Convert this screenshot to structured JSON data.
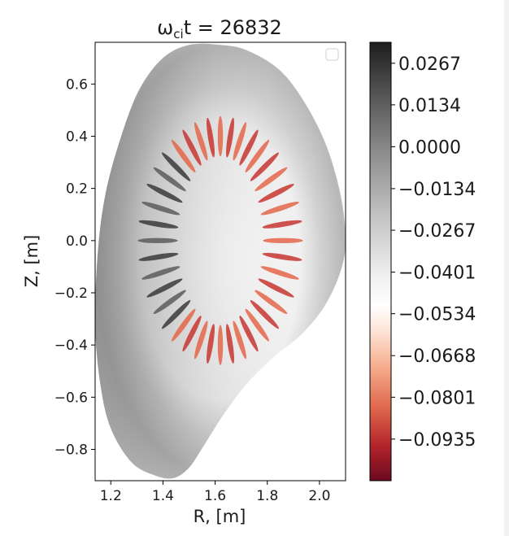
{
  "chart_data": {
    "type": "heatmap",
    "title": "$\\omega_{ci}t = 26832$",
    "title_parts": {
      "symbol": "ω",
      "subscript": "ci",
      "rest": "t = 26832"
    },
    "xlabel": "R, [m]",
    "ylabel": "Z, [m]",
    "xlim": [
      1.14,
      2.1
    ],
    "ylim": [
      -0.92,
      0.76
    ],
    "xticks": [
      "1.2",
      "1.4",
      "1.6",
      "1.8",
      "2.0"
    ],
    "xtick_values": [
      1.2,
      1.4,
      1.6,
      1.8,
      2.0
    ],
    "yticks": [
      "0.6",
      "0.4",
      "0.2",
      "0.0",
      "−0.2",
      "−0.4",
      "−0.6",
      "−0.8"
    ],
    "ytick_values": [
      0.6,
      0.4,
      0.2,
      0.0,
      -0.2,
      -0.4,
      -0.6,
      -0.8
    ],
    "legend": "top-right (empty)",
    "colorbar": {
      "ticks": [
        "0.0267",
        "0.0134",
        "0.0000",
        "−0.0134",
        "−0.0267",
        "−0.0401",
        "−0.0534",
        "−0.0668",
        "−0.0801",
        "−0.0935"
      ],
      "tick_values": [
        0.0267,
        0.0134,
        0.0,
        -0.0134,
        -0.0267,
        -0.0401,
        -0.0534,
        -0.0668,
        -0.0801,
        -0.0935
      ],
      "range": [
        -0.1068,
        0.0334
      ],
      "colormap": [
        "#6b0a1f",
        "#b3242b",
        "#e06a4e",
        "#f7b598",
        "#fdf2ec",
        "#ffffff",
        "#e3e3e3",
        "#bdbdbd",
        "#8a8a8a",
        "#555555",
        "#1d1d1d"
      ]
    },
    "plasma_boundary": {
      "R": [
        1.62,
        1.72,
        1.84,
        1.93,
        2.02,
        2.08,
        2.1,
        2.08,
        2.02,
        1.93,
        1.82,
        1.72,
        1.63,
        1.56,
        1.5,
        1.44,
        1.37,
        1.28,
        1.2,
        1.16,
        1.14,
        1.15,
        1.18,
        1.24,
        1.31,
        1.4,
        1.5
      ],
      "Z": [
        0.75,
        0.73,
        0.66,
        0.55,
        0.38,
        0.18,
        0.0,
        -0.12,
        -0.25,
        -0.36,
        -0.45,
        -0.55,
        -0.67,
        -0.78,
        -0.87,
        -0.91,
        -0.9,
        -0.85,
        -0.72,
        -0.55,
        -0.32,
        -0.05,
        0.18,
        0.4,
        0.58,
        0.7,
        0.75
      ]
    },
    "mode_ring": {
      "center_R": 1.62,
      "center_Z": 0.0,
      "inner_radius_R": 0.17,
      "outer_radius_R": 0.31,
      "inner_radius_Z": 0.33,
      "outer_radius_Z": 0.47,
      "lobes": 40
    },
    "features": [
      {
        "name": "negative-lobe-top",
        "R": 1.65,
        "Z": 0.43,
        "value": -0.09
      },
      {
        "name": "negative-lobe-right",
        "R": 1.9,
        "Z": 0.0,
        "value": -0.08
      },
      {
        "name": "negative-lobe-bottom",
        "R": 1.55,
        "Z": -0.45,
        "value": -0.09
      },
      {
        "name": "positive-lobe-left",
        "R": 1.4,
        "Z": 0.15,
        "value": 0.025
      },
      {
        "name": "outer-shell",
        "R": 1.7,
        "Z": 0.6,
        "value": -0.013
      }
    ]
  }
}
